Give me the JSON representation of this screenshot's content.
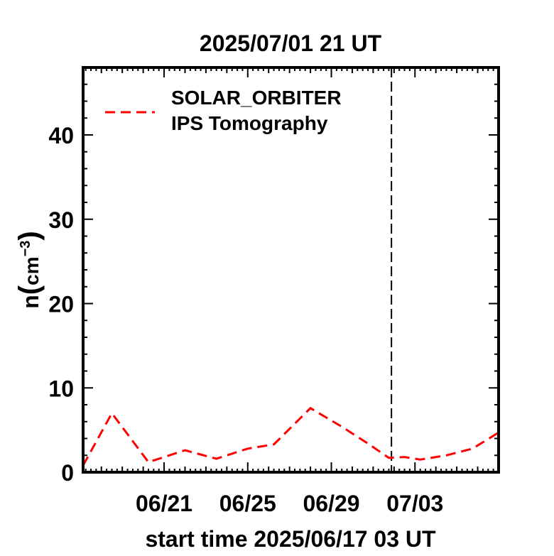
{
  "chart_data": {
    "type": "line",
    "title": "2025/07/01 21 UT",
    "xlabel": "start time 2025/06/17 03 UT",
    "ylabel_base": "n",
    "ylabel_unit": "cm",
    "ylabel_exponent": "−3",
    "ylim": [
      0,
      48
    ],
    "xlim": [
      "2025-06-17 03:00",
      "2025-07-07 00:00"
    ],
    "x_tick_labels": [
      "06/21",
      "06/25",
      "06/29",
      "07/03"
    ],
    "x_tick_dates": [
      "2025-06-21",
      "2025-06-25",
      "2025-06-29",
      "2025-07-03"
    ],
    "y_ticks": [
      0,
      10,
      20,
      30,
      40
    ],
    "grid": false,
    "legend_position": "top-left",
    "current_time_marker": "2025-07-01 21:00",
    "series": [
      {
        "name_lines": [
          "SOLAR_ORBITER",
          "IPS Tomography"
        ],
        "color": "#ff0000",
        "line_style": "dashed",
        "x": [
          "2025-06-17 03:00",
          "2025-06-18 12:00",
          "2025-06-20 06:00",
          "2025-06-22 00:00",
          "2025-06-23 12:00",
          "2025-06-25 00:00",
          "2025-06-26 06:00",
          "2025-06-28 00:00",
          "2025-06-29 12:00",
          "2025-06-30 18:00",
          "2025-07-01 18:00",
          "2025-07-02 12:00",
          "2025-07-03 06:00",
          "2025-07-04 12:00",
          "2025-07-05 18:00",
          "2025-07-07 00:00"
        ],
        "y": [
          0.8,
          7.0,
          1.2,
          2.6,
          1.6,
          2.8,
          3.3,
          7.6,
          5.4,
          3.4,
          1.7,
          1.8,
          1.5,
          2.0,
          2.8,
          4.7
        ]
      }
    ]
  }
}
